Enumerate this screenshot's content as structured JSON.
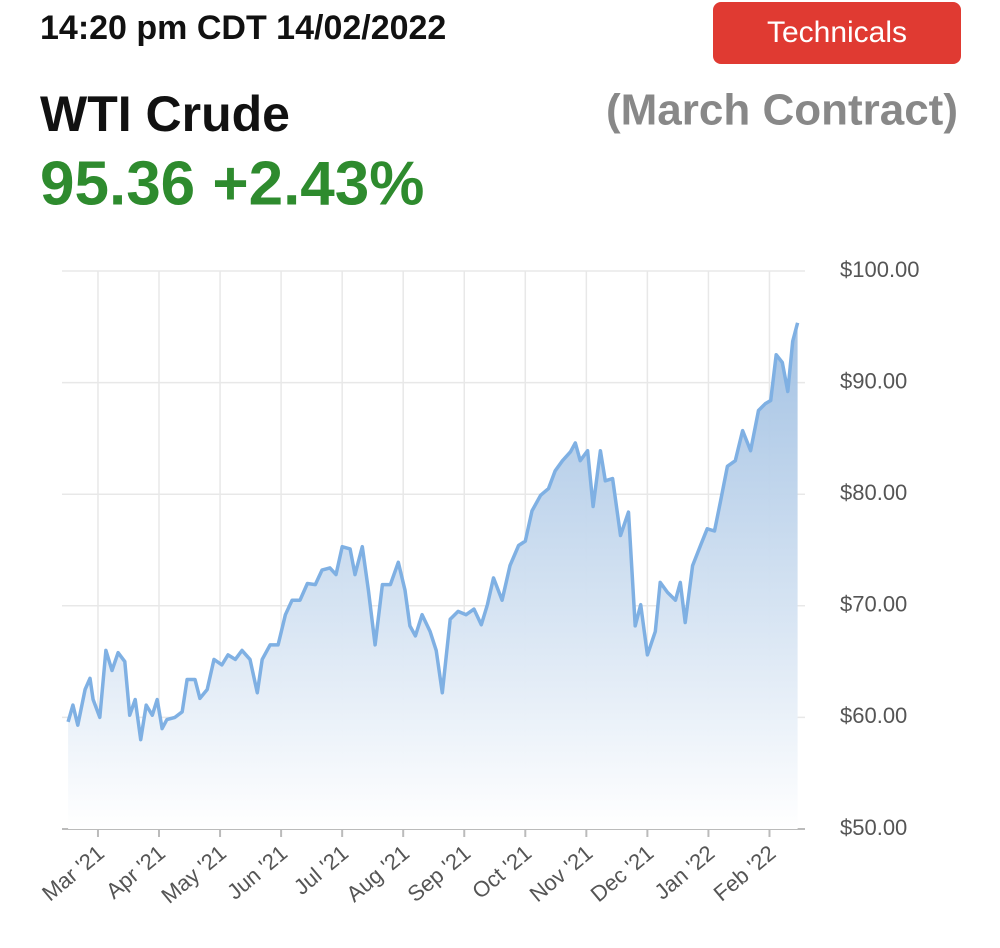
{
  "header": {
    "timestamp": "14:20 pm CDT 14/02/2022",
    "button": "Technicals",
    "title": "WTI Crude",
    "subtitle": "(March Contract)",
    "price": "95.36 +2.43%"
  },
  "chart_data": {
    "type": "area",
    "color": "#7fb0e3",
    "grid": true,
    "x": [
      -0.49,
      -0.41,
      -0.33,
      -0.21,
      -0.13,
      -0.08,
      0.03,
      0.13,
      0.23,
      0.33,
      0.44,
      0.52,
      0.61,
      0.7,
      0.79,
      0.89,
      0.97,
      1.05,
      1.13,
      1.26,
      1.38,
      1.46,
      1.59,
      1.67,
      1.79,
      1.9,
      2.03,
      2.13,
      2.25,
      2.36,
      2.49,
      2.61,
      2.69,
      2.82,
      2.95,
      3.07,
      3.18,
      3.31,
      3.43,
      3.56,
      3.67,
      3.8,
      3.9,
      4.0,
      4.13,
      4.21,
      4.33,
      4.43,
      4.54,
      4.66,
      4.79,
      4.92,
      5.03,
      5.11,
      5.2,
      5.31,
      5.44,
      5.54,
      5.64,
      5.77,
      5.9,
      6.03,
      6.16,
      6.28,
      6.38,
      6.48,
      6.62,
      6.75,
      6.89,
      7.0,
      7.11,
      7.25,
      7.38,
      7.49,
      7.61,
      7.74,
      7.82,
      7.9,
      8.02,
      8.11,
      8.23,
      8.31,
      8.43,
      8.56,
      8.69,
      8.8,
      8.89,
      9.0,
      9.13,
      9.21,
      9.33,
      9.46,
      9.54,
      9.62,
      9.74,
      9.87,
      9.98,
      10.1,
      10.2,
      10.31,
      10.44,
      10.56,
      10.69,
      10.82,
      10.93,
      11.02,
      11.11,
      11.21,
      11.3,
      11.38,
      11.46
    ],
    "values": [
      59.6,
      61.1,
      59.3,
      62.5,
      63.5,
      61.6,
      60.0,
      66.0,
      64.2,
      65.8,
      65.0,
      60.2,
      61.6,
      58.0,
      61.1,
      60.2,
      61.6,
      59.0,
      59.8,
      60.0,
      60.5,
      63.4,
      63.4,
      61.7,
      62.5,
      65.2,
      64.7,
      65.6,
      65.2,
      66.0,
      65.2,
      62.2,
      65.2,
      66.5,
      66.5,
      69.2,
      70.5,
      70.5,
      72.0,
      71.9,
      73.2,
      73.4,
      72.8,
      75.3,
      75.1,
      72.8,
      75.3,
      71.4,
      66.5,
      71.9,
      71.9,
      73.9,
      71.4,
      68.2,
      67.3,
      69.2,
      67.7,
      66.0,
      62.2,
      68.8,
      69.5,
      69.2,
      69.7,
      68.3,
      70.1,
      72.5,
      70.5,
      73.6,
      75.4,
      75.8,
      78.5,
      79.9,
      80.5,
      82.1,
      83.0,
      83.8,
      84.6,
      83.0,
      83.9,
      78.9,
      83.9,
      81.2,
      81.4,
      76.3,
      78.4,
      68.2,
      70.1,
      65.6,
      67.7,
      72.1,
      71.2,
      70.5,
      72.1,
      68.5,
      73.6,
      75.4,
      76.9,
      76.7,
      79.4,
      82.5,
      83.0,
      85.7,
      83.9,
      87.5,
      88.1,
      88.4,
      92.5,
      91.8,
      89.2,
      93.7,
      95.36
    ],
    "xlim": [
      -0.54,
      11.5
    ],
    "xticks": [
      {
        "value": 0,
        "label": "Mar '21"
      },
      {
        "value": 1,
        "label": "Apr '21"
      },
      {
        "value": 2,
        "label": "May '21"
      },
      {
        "value": 3,
        "label": "Jun '21"
      },
      {
        "value": 4,
        "label": "Jul '21"
      },
      {
        "value": 5,
        "label": "Aug '21"
      },
      {
        "value": 6,
        "label": "Sep '21"
      },
      {
        "value": 7,
        "label": "Oct '21"
      },
      {
        "value": 8,
        "label": "Nov '21"
      },
      {
        "value": 9,
        "label": "Dec '21"
      },
      {
        "value": 10,
        "label": "Jan '22"
      },
      {
        "value": 11,
        "label": "Feb '22"
      }
    ],
    "ylim": [
      50,
      100
    ],
    "yticks": [
      {
        "value": 50,
        "label": "$50.00"
      },
      {
        "value": 60,
        "label": "$60.00"
      },
      {
        "value": 70,
        "label": "$70.00"
      },
      {
        "value": 80,
        "label": "$80.00"
      },
      {
        "value": 90,
        "label": "$90.00"
      },
      {
        "value": 100,
        "label": "$100.00"
      }
    ]
  }
}
